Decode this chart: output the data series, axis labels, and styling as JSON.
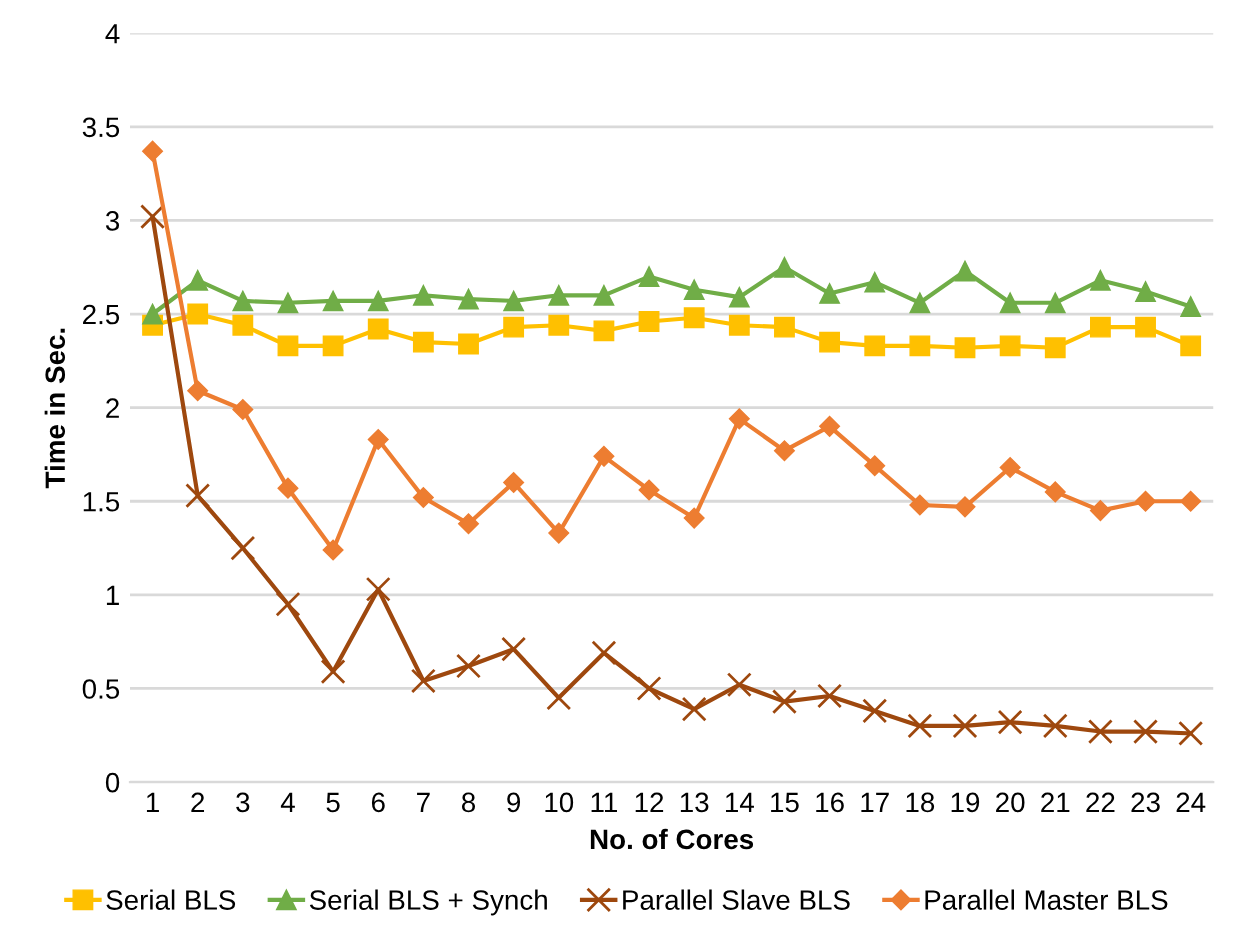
{
  "chart_data": {
    "type": "line",
    "xlabel": "No. of Cores",
    "ylabel": "Time in Sec.",
    "categories": [
      "1",
      "2",
      "3",
      "4",
      "5",
      "6",
      "7",
      "8",
      "9",
      "10",
      "11",
      "12",
      "13",
      "14",
      "15",
      "16",
      "17",
      "18",
      "19",
      "20",
      "21",
      "22",
      "23",
      "24"
    ],
    "ylim": [
      0,
      4
    ],
    "yticks": [
      0,
      0.5,
      1,
      1.5,
      2,
      2.5,
      3,
      3.5,
      4
    ],
    "grid": "y",
    "legend": "bottom",
    "series": [
      {
        "name": "Serial BLS",
        "color": "#ffc000",
        "marker": "square",
        "values": [
          2.44,
          2.5,
          2.44,
          2.33,
          2.33,
          2.42,
          2.35,
          2.34,
          2.43,
          2.44,
          2.41,
          2.46,
          2.48,
          2.44,
          2.43,
          2.35,
          2.33,
          2.33,
          2.32,
          2.33,
          2.32,
          2.43,
          2.43,
          2.33
        ]
      },
      {
        "name": "Serial BLS + Synch",
        "color": "#70ad47",
        "marker": "triangle",
        "values": [
          2.5,
          2.68,
          2.57,
          2.56,
          2.57,
          2.57,
          2.6,
          2.58,
          2.57,
          2.6,
          2.6,
          2.7,
          2.63,
          2.59,
          2.75,
          2.61,
          2.67,
          2.56,
          2.73,
          2.56,
          2.56,
          2.68,
          2.62,
          2.54
        ]
      },
      {
        "name": "Parallel Slave BLS",
        "color": "#9e480e",
        "marker": "cross",
        "values": [
          3.02,
          1.53,
          1.25,
          0.95,
          0.59,
          1.03,
          0.54,
          0.62,
          0.71,
          0.45,
          0.69,
          0.5,
          0.39,
          0.52,
          0.43,
          0.46,
          0.38,
          0.3,
          0.3,
          0.32,
          0.3,
          0.27,
          0.27,
          0.26
        ]
      },
      {
        "name": "Parallel Master BLS",
        "color": "#ed7d31",
        "marker": "diamond",
        "values": [
          3.37,
          2.09,
          1.99,
          1.57,
          1.24,
          1.83,
          1.52,
          1.38,
          1.6,
          1.33,
          1.74,
          1.56,
          1.41,
          1.94,
          1.77,
          1.9,
          1.69,
          1.48,
          1.47,
          1.68,
          1.55,
          1.45,
          1.5,
          1.5
        ]
      }
    ]
  }
}
